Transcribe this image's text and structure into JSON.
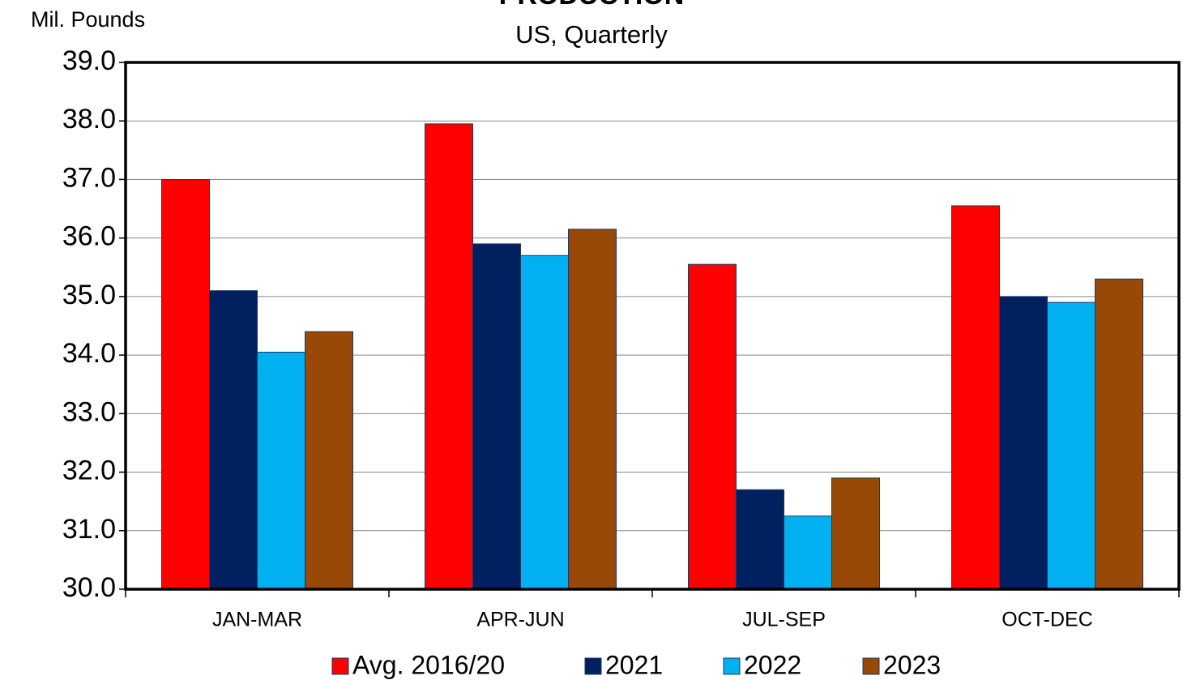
{
  "chart_data": {
    "type": "bar",
    "title": "PRODUCTION",
    "subtitle": "US, Quarterly",
    "y_label": "Mil. Pounds",
    "categories": [
      "JAN-MAR",
      "APR-JUN",
      "JUL-SEP",
      "OCT-DEC"
    ],
    "series": [
      {
        "name": "Avg. 2016/20",
        "color": "#ff0000",
        "values": [
          37.0,
          37.95,
          35.55,
          36.55
        ]
      },
      {
        "name": "2021",
        "color": "#002060",
        "values": [
          35.1,
          35.9,
          31.7,
          35.0
        ]
      },
      {
        "name": "2022",
        "color": "#00b0f0",
        "values": [
          34.05,
          35.7,
          31.25,
          34.9
        ]
      },
      {
        "name": "2023",
        "color": "#984807",
        "values": [
          34.4,
          36.15,
          31.9,
          35.3
        ]
      }
    ],
    "ylim": [
      30,
      39
    ],
    "yticks": [
      {
        "value": 30,
        "label": "30.0"
      },
      {
        "value": 31,
        "label": "31.0"
      },
      {
        "value": 32,
        "label": "32.0"
      },
      {
        "value": 33,
        "label": "33.0"
      },
      {
        "value": 34,
        "label": "34.0"
      },
      {
        "value": 35,
        "label": "35.0"
      },
      {
        "value": 36,
        "label": "36.0"
      },
      {
        "value": 37,
        "label": "37.0"
      },
      {
        "value": 38,
        "label": "38.0"
      },
      {
        "value": 39,
        "label": "39.0"
      }
    ],
    "grid": true
  }
}
